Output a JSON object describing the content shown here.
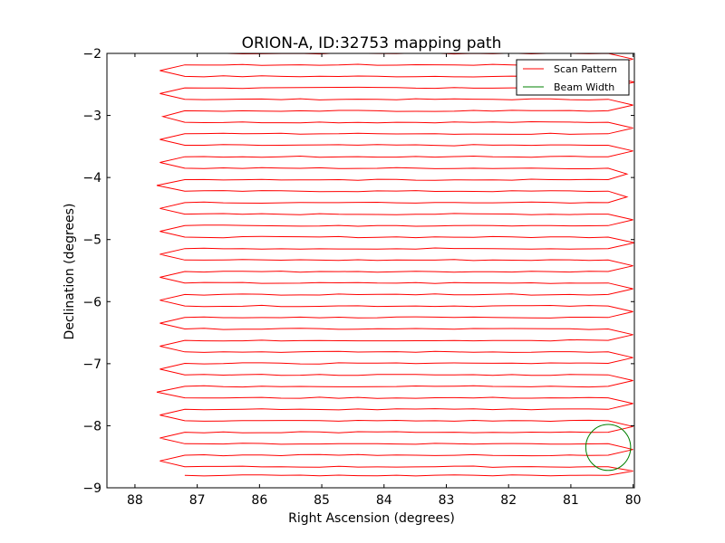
{
  "chart_data": {
    "type": "line",
    "title": "ORION-A, ID:32753 mapping path",
    "xlabel": "Right Ascension (degrees)",
    "ylabel": "Declination (degrees)",
    "xlim": [
      88.45,
      79.98
    ],
    "ylim": [
      -9,
      -2
    ],
    "x_inverted": true,
    "xticks": [
      88,
      87,
      86,
      85,
      84,
      83,
      82,
      81,
      80
    ],
    "xtick_labels": [
      "88",
      "87",
      "86",
      "85",
      "84",
      "83",
      "82",
      "81",
      "80"
    ],
    "yticks": [
      -2,
      -3,
      -4,
      -5,
      -6,
      -7,
      -8,
      -9
    ],
    "ytick_labels": [
      "−2",
      "−3",
      "−4",
      "−5",
      "−6",
      "−7",
      "−8",
      "−9"
    ],
    "grid": false,
    "legend": {
      "location": "upper right",
      "entries": [
        "Scan Pattern",
        "Beam Width"
      ]
    },
    "scan_pattern": {
      "name": "Scan Pattern",
      "color": "#ff0000",
      "east_ra": 87.2,
      "west_ra": 80.4,
      "rows": [
        -2.0,
        -2.185,
        -2.37,
        -2.555,
        -2.74,
        -2.925,
        -3.11,
        -3.295,
        -3.48,
        -3.665,
        -3.85,
        -4.035,
        -4.22,
        -4.405,
        -4.59,
        -4.775,
        -4.96,
        -5.145,
        -5.33,
        -5.515,
        -5.7,
        -5.885,
        -6.07,
        -6.255,
        -6.44,
        -6.625,
        -6.81,
        -6.995,
        -7.18,
        -7.365,
        -7.55,
        -7.735,
        -7.92,
        -8.105,
        -8.29,
        -8.475,
        -8.66,
        -8.8
      ],
      "turn_ra_east": [
        87.7,
        87.6,
        87.65,
        87.6,
        87.65,
        87.55,
        87.7,
        87.6,
        87.5,
        87.6,
        87.55,
        87.65,
        87.6,
        87.6,
        87.55,
        87.6,
        87.65,
        87.6,
        87.5,
        87.6,
        87.55,
        87.6,
        87.6,
        87.6,
        87.65,
        87.6,
        87.6,
        87.6,
        87.6,
        87.65,
        87.6,
        87.6,
        87.6,
        87.6,
        87.6,
        87.6,
        87.6
      ],
      "turn_ra_west": [
        80.0,
        80.0,
        79.98,
        80.0,
        80.0,
        80.0,
        80.0,
        79.98,
        80.0,
        80.0,
        80.1,
        80.05,
        80.1,
        80.0,
        80.0,
        80.0,
        79.98,
        80.0,
        80.0,
        80.0,
        80.0,
        80.0,
        80.0,
        80.0,
        80.0,
        80.0,
        80.0,
        80.0,
        80.0,
        80.0,
        80.0,
        80.0,
        80.0,
        80.0,
        80.0,
        80.0,
        80.0
      ]
    },
    "beam_width": {
      "name": "Beam Width",
      "color": "#008000",
      "center_ra": 80.4,
      "center_dec": -8.35,
      "radius_ra": 0.36,
      "radius_dec": 0.37
    }
  }
}
